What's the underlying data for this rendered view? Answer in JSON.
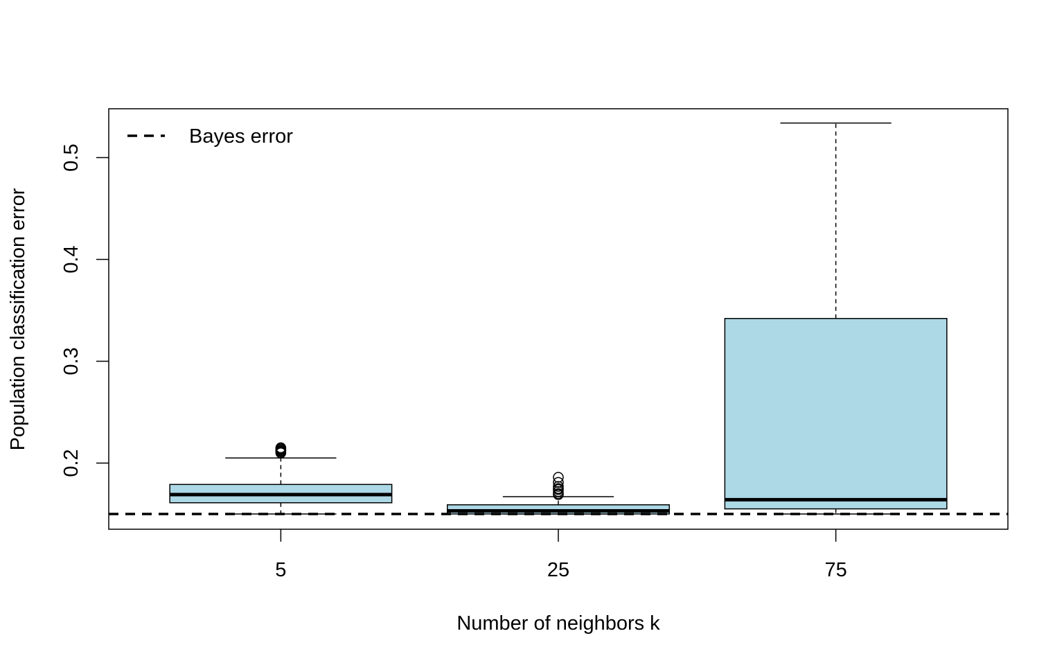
{
  "chart_data": {
    "type": "boxplot",
    "title": "",
    "xlabel": "Number of neighbors k",
    "ylabel": "Population classification error",
    "categories": [
      "5",
      "25",
      "75"
    ],
    "ylim": [
      0.135,
      0.548
    ],
    "yticks": [
      0.2,
      0.3,
      0.4,
      0.5
    ],
    "ytick_labels": [
      "0.2",
      "0.3",
      "0.4",
      "0.5"
    ],
    "box_fill": "#add8e6",
    "boxes": [
      {
        "category": "5",
        "whisker_low": 0.15,
        "q1": 0.161,
        "median": 0.169,
        "q3": 0.179,
        "whisker_high": 0.205,
        "outliers": [
          0.21,
          0.211,
          0.212,
          0.213,
          0.214,
          0.215
        ]
      },
      {
        "category": "25",
        "whisker_low": 0.15,
        "q1": 0.15,
        "median": 0.153,
        "q3": 0.159,
        "whisker_high": 0.167,
        "outliers": [
          0.169,
          0.17,
          0.172,
          0.174,
          0.175,
          0.177,
          0.181,
          0.186
        ]
      },
      {
        "category": "75",
        "whisker_low": 0.15,
        "q1": 0.155,
        "median": 0.164,
        "q3": 0.342,
        "whisker_high": 0.534,
        "outliers": []
      }
    ],
    "reference_line": {
      "label": "Bayes error",
      "value": 0.15,
      "style": "dashed"
    },
    "legend": {
      "position": "top-left",
      "entries": [
        "Bayes error"
      ]
    }
  }
}
